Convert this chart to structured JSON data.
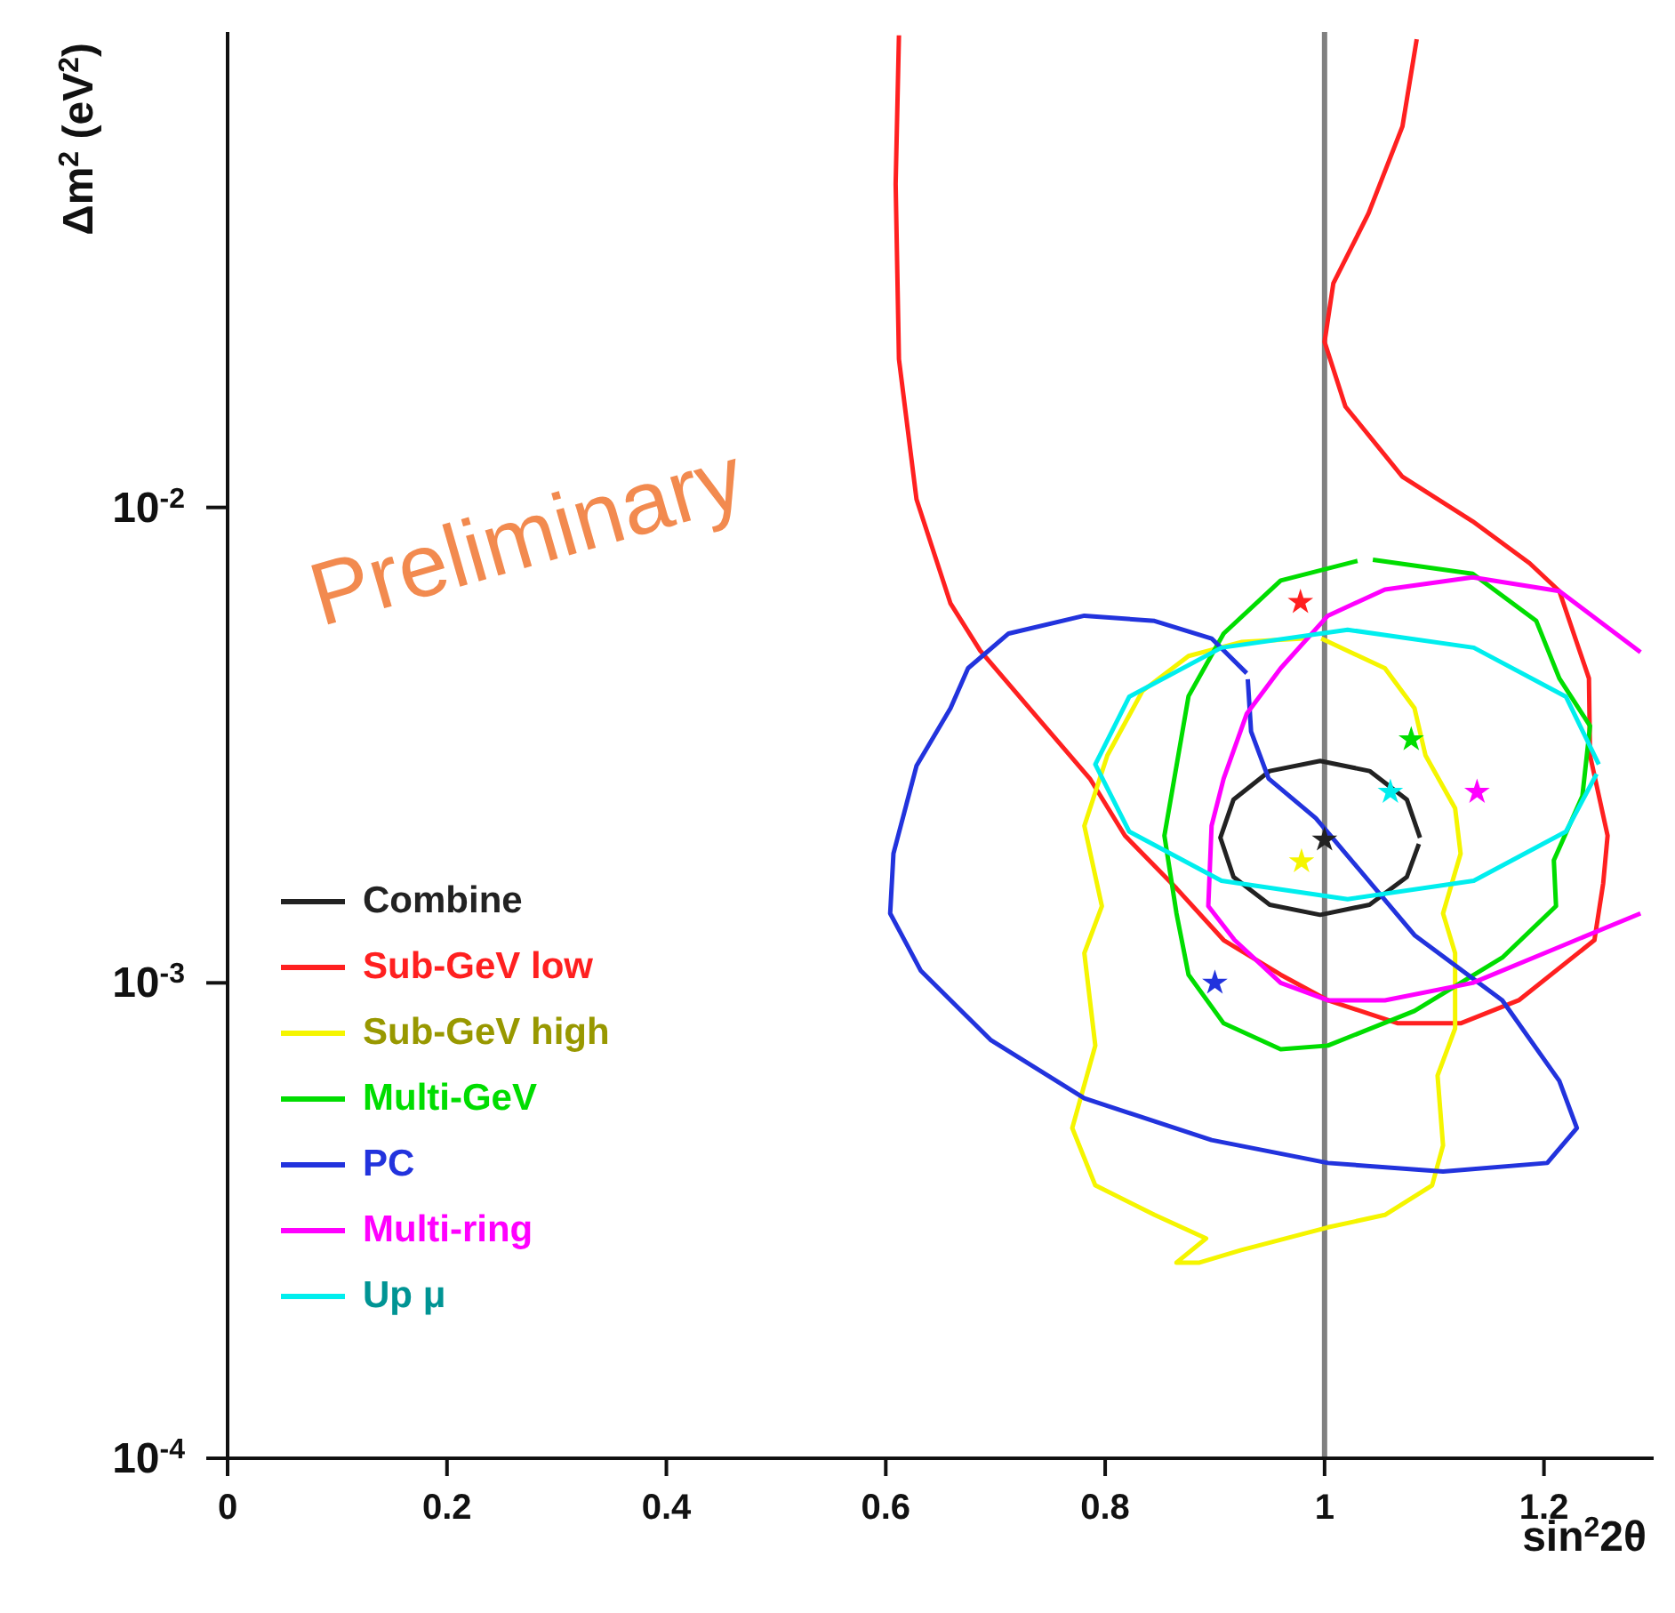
{
  "chart_data": {
    "type": "line",
    "xlabel": "sin$^{2}$2θ",
    "ylabel": "Δm$^{2}$ (eV$^{2}$)",
    "log": "y",
    "xlim": [
      0,
      1.3
    ],
    "xticks": [
      0,
      0.2,
      0.4,
      0.6,
      0.8,
      1,
      1.2
    ],
    "ylim": [
      0.0001,
      0.1
    ],
    "yticks": [
      {
        "value": 0.0001,
        "label": "10$^{-4}$"
      },
      {
        "value": 0.001,
        "label": "10$^{-3}$"
      },
      {
        "value": 0.01,
        "label": "10$^{-2}$"
      }
    ],
    "legend": "bottom left",
    "annotations": [
      "Preliminary"
    ],
    "ref_lines": [
      {
        "axis": "x",
        "value": 1,
        "color": "#808080"
      }
    ],
    "series": [
      {
        "name": "Combine",
        "color": "#222222",
        "x": [
          1.087,
          1.075,
          1.041,
          0.996,
          0.95,
          0.917,
          0.905,
          0.917,
          0.95,
          0.996,
          1.041,
          1.075,
          1.086
        ],
        "values": [
          0.00202,
          0.00243,
          0.00279,
          0.00293,
          0.00279,
          0.00243,
          0.00202,
          0.00167,
          0.00146,
          0.00139,
          0.00146,
          0.00167,
          0.00196
        ]
      },
      {
        "name": "Sub-GeV low",
        "color": "#ff2020",
        "x": [
          0.612,
          0.609,
          0.612,
          0.628,
          0.659,
          0.686,
          0.738,
          0.786,
          0.818,
          0.865,
          0.908,
          0.96,
          1.003,
          1.067,
          1.124,
          1.177,
          1.246,
          1.254,
          1.258,
          1.242,
          1.241,
          1.214,
          1.187,
          1.135,
          1.071,
          1.019,
          1.0,
          1.008,
          1.04,
          1.071,
          1.084
        ],
        "values": [
          0.0984,
          0.0479,
          0.0205,
          0.0104,
          0.00628,
          0.005,
          0.00362,
          0.00269,
          0.00204,
          0.00158,
          0.00123,
          0.00104,
          0.000919,
          0.000822,
          0.000822,
          0.000919,
          0.00123,
          0.00162,
          0.00204,
          0.00301,
          0.00437,
          0.00667,
          0.00763,
          0.00935,
          0.0116,
          0.0163,
          0.0223,
          0.0296,
          0.0415,
          0.0633,
          0.0966
        ]
      },
      {
        "name": "Sub-GeV high",
        "color": "#f5f500",
        "x": [
          0.997,
          1.055,
          1.082,
          1.092,
          1.119,
          1.124,
          1.108,
          1.119,
          1.119,
          1.103,
          1.108,
          1.098,
          1.055,
          1.003,
          0.924,
          0.886,
          0.865,
          0.892,
          0.845,
          0.791,
          0.77,
          0.791,
          0.781,
          0.797,
          0.781,
          0.802,
          0.834,
          0.876,
          0.924,
          0.985
        ],
        "values": [
          0.0053,
          0.00459,
          0.00378,
          0.00301,
          0.00233,
          0.00187,
          0.0014,
          0.001155,
          0.000802,
          0.000638,
          0.000455,
          0.000375,
          0.000325,
          0.000306,
          0.000274,
          0.000258,
          0.000258,
          0.00029,
          0.000325,
          0.000375,
          0.000495,
          0.000738,
          0.001155,
          0.00145,
          0.00214,
          0.00301,
          0.00411,
          0.00487,
          0.00521,
          0.00531
        ]
      },
      {
        "name": "Multi-GeV",
        "color": "#00dd00",
        "x": [
          1.044,
          1.135,
          1.193,
          1.214,
          1.242,
          1.235,
          1.209,
          1.211,
          1.162,
          1.082,
          1.003,
          0.96,
          0.908,
          0.876,
          0.865,
          0.854,
          0.865,
          0.876,
          0.908,
          0.96,
          1.03
        ],
        "values": [
          0.00776,
          0.00725,
          0.00577,
          0.00437,
          0.00347,
          0.00247,
          0.00181,
          0.00145,
          0.00113,
          0.000873,
          0.000738,
          0.000725,
          0.000822,
          0.00104,
          0.0014,
          0.00204,
          0.00286,
          0.00401,
          0.00543,
          0.00702,
          0.00772
        ]
      },
      {
        "name": "PC",
        "color": "#2233dd",
        "x": [
          0.929,
          0.897,
          0.845,
          0.781,
          0.712,
          0.675,
          0.659,
          0.628,
          0.607,
          0.604,
          0.632,
          0.696,
          0.781,
          0.897,
          1.003,
          1.108,
          1.203,
          1.23,
          1.214,
          1.162,
          1.082,
          1.029,
          0.992,
          0.949,
          0.933,
          0.93
        ],
        "values": [
          0.00448,
          0.0053,
          0.00577,
          0.00592,
          0.00543,
          0.00459,
          0.00378,
          0.00286,
          0.00187,
          0.0014,
          0.00106,
          0.000757,
          0.000572,
          0.000467,
          0.000418,
          0.000401,
          0.000418,
          0.000495,
          0.000622,
          0.000919,
          0.00126,
          0.00176,
          0.00222,
          0.00269,
          0.00338,
          0.00435
        ]
      },
      {
        "name": "Multi-ring",
        "color": "#ff00ff",
        "x": [
          1.288,
          1.214,
          1.135,
          1.055,
          1.003,
          0.96,
          0.929,
          0.908,
          0.897,
          0.894,
          0.918,
          0.96,
          1.003,
          1.055,
          1.135,
          1.214,
          1.288
        ],
        "values": [
          0.00496,
          0.00667,
          0.00713,
          0.00672,
          0.00592,
          0.00459,
          0.00368,
          0.00269,
          0.00214,
          0.00145,
          0.00123,
          0.001,
          0.000919,
          0.000919,
          0.001,
          0.00119,
          0.0014
        ]
      },
      {
        "name": "Up μ",
        "color": "#00eeee",
        "x": [
          1.25,
          1.22,
          1.136,
          1.021,
          0.906,
          0.822,
          0.791,
          0.822,
          0.906,
          1.021,
          1.136,
          1.22,
          1.248
        ],
        "values": [
          0.00288,
          0.004,
          0.00507,
          0.00553,
          0.00507,
          0.004,
          0.00288,
          0.00208,
          0.00164,
          0.0015,
          0.00164,
          0.00208,
          0.00275
        ]
      },
      {
        "type": "scatter",
        "marker": "star",
        "x": [
          1.0,
          0.978,
          0.979,
          1.079,
          0.9,
          1.139,
          1.06
        ],
        "values": [
          0.002,
          0.00632,
          0.0018,
          0.00325,
          0.001,
          0.00252,
          0.00252
        ],
        "colors": [
          "#222222",
          "#ff2020",
          "#f5f500",
          "#00dd00",
          "#2233dd",
          "#ff00ff",
          "#00eeee"
        ]
      }
    ]
  }
}
